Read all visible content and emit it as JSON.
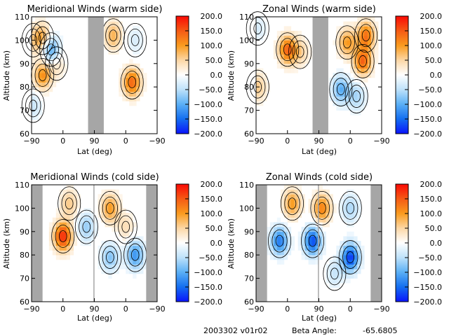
{
  "chart_data": [
    {
      "type": "heatmap",
      "title": "Meridional Winds (warm side)",
      "xlabel": "Lat (deg)",
      "ylabel": "Altitude (km)",
      "xticks": [
        "-90",
        "0",
        "90",
        "0",
        "-90"
      ],
      "yticks": [
        "60",
        "70",
        "80",
        "90",
        "100",
        "110"
      ],
      "ylim": [
        60,
        110
      ],
      "colorbar": {
        "min": -200,
        "max": 200,
        "ticks": [
          "200.0",
          "150.0",
          "100.0",
          "50.0",
          "0.0",
          "-50.0",
          "-100.0",
          "-150.0",
          "-200.0"
        ]
      },
      "masked_lat_segments": [
        [
          1.8,
          2.3
        ]
      ],
      "features": [
        {
          "seg": 0.35,
          "alt": 101,
          "value": 90
        },
        {
          "seg": 0.35,
          "alt": 85,
          "value": 110
        },
        {
          "seg": 0.62,
          "alt": 96,
          "value": -120
        },
        {
          "seg": 0.8,
          "alt": 90,
          "value": 40
        },
        {
          "seg": 0.05,
          "alt": 100,
          "value": 40
        },
        {
          "seg": 0.05,
          "alt": 72,
          "value": -40
        },
        {
          "seg": 2.6,
          "alt": 102,
          "value": 80
        },
        {
          "seg": 3.2,
          "alt": 82,
          "value": 140
        },
        {
          "seg": 3.3,
          "alt": 100,
          "value": -30
        }
      ]
    },
    {
      "type": "heatmap",
      "title": "Zonal Winds (warm side)",
      "xlabel": "Lat (deg)",
      "ylabel": "Altitude (km)",
      "xticks": [
        "-90",
        "0",
        "90",
        "0",
        "-90"
      ],
      "yticks": [
        "60",
        "70",
        "80",
        "90",
        "100",
        "110"
      ],
      "ylim": [
        60,
        110
      ],
      "colorbar": {
        "min": -200,
        "max": 200,
        "ticks": [
          "200.0",
          "150.0",
          "100.0",
          "50.0",
          "0.0",
          "-50.0",
          "-100.0",
          "-150.0",
          "-200.0"
        ]
      },
      "masked_lat_segments": [
        [
          1.8,
          2.3
        ]
      ],
      "features": [
        {
          "seg": 1.0,
          "alt": 96,
          "value": 140
        },
        {
          "seg": 1.4,
          "alt": 95,
          "value": 50
        },
        {
          "seg": 2.9,
          "alt": 99,
          "value": 100
        },
        {
          "seg": 3.4,
          "alt": 91,
          "value": 140
        },
        {
          "seg": 3.5,
          "alt": 102,
          "value": 130
        },
        {
          "seg": 2.7,
          "alt": 79,
          "value": -100
        },
        {
          "seg": 3.2,
          "alt": 76,
          "value": -60
        },
        {
          "seg": 0.05,
          "alt": 80,
          "value": 60
        },
        {
          "seg": 0.05,
          "alt": 105,
          "value": -30
        }
      ]
    },
    {
      "type": "heatmap",
      "title": "Meridional Winds (cold side)",
      "xlabel": "Lat (deg)",
      "ylabel": "Altitude (km)",
      "xticks": [
        "-90",
        "0",
        "90",
        "0",
        "-90"
      ],
      "yticks": [
        "60",
        "70",
        "80",
        "90",
        "100",
        "110"
      ],
      "ylim": [
        60,
        110
      ],
      "colorbar": {
        "min": -200,
        "max": 200,
        "ticks": [
          "200.0",
          "150.0",
          "100.0",
          "50.0",
          "0.0",
          "-50.0",
          "-100.0",
          "-150.0",
          "-200.0"
        ]
      },
      "masked_lat_segments": [
        [
          0,
          0.35
        ],
        [
          1.97,
          2.0
        ],
        [
          3.65,
          4
        ]
      ],
      "features": [
        {
          "seg": 1.0,
          "alt": 88,
          "value": 180
        },
        {
          "seg": 1.2,
          "alt": 102,
          "value": 60
        },
        {
          "seg": 1.75,
          "alt": 92,
          "value": -70
        },
        {
          "seg": 2.5,
          "alt": 100,
          "value": 100
        },
        {
          "seg": 3.0,
          "alt": 92,
          "value": 40
        },
        {
          "seg": 3.3,
          "alt": 80,
          "value": -120
        },
        {
          "seg": 2.5,
          "alt": 79,
          "value": -80
        }
      ]
    },
    {
      "type": "heatmap",
      "title": "Zonal Winds (cold side)",
      "xlabel": "Lat (deg)",
      "ylabel": "Altitude (km)",
      "xticks": [
        "-90",
        "0",
        "90",
        "0",
        "-90"
      ],
      "yticks": [
        "60",
        "70",
        "80",
        "90",
        "100",
        "110"
      ],
      "ylim": [
        60,
        110
      ],
      "colorbar": {
        "min": -200,
        "max": 200,
        "ticks": [
          "200.0",
          "150.0",
          "100.0",
          "50.0",
          "0.0",
          "-50.0",
          "-100.0",
          "-150.0",
          "-200.0"
        ]
      },
      "masked_lat_segments": [
        [
          0,
          0.35
        ],
        [
          1.97,
          2.0
        ],
        [
          3.65,
          4
        ]
      ],
      "features": [
        {
          "seg": 0.75,
          "alt": 86,
          "value": -140
        },
        {
          "seg": 1.15,
          "alt": 102,
          "value": 100
        },
        {
          "seg": 1.8,
          "alt": 86,
          "value": -170
        },
        {
          "seg": 2.1,
          "alt": 100,
          "value": 120
        },
        {
          "seg": 3.0,
          "alt": 79,
          "value": -180
        },
        {
          "seg": 3.0,
          "alt": 100,
          "value": -60
        },
        {
          "seg": 2.5,
          "alt": 72,
          "value": -40
        }
      ]
    }
  ],
  "footer": {
    "orbit_version": "2003302 v01r02",
    "beta_label": "Beta Angle:",
    "beta_value": "-65.6805"
  }
}
